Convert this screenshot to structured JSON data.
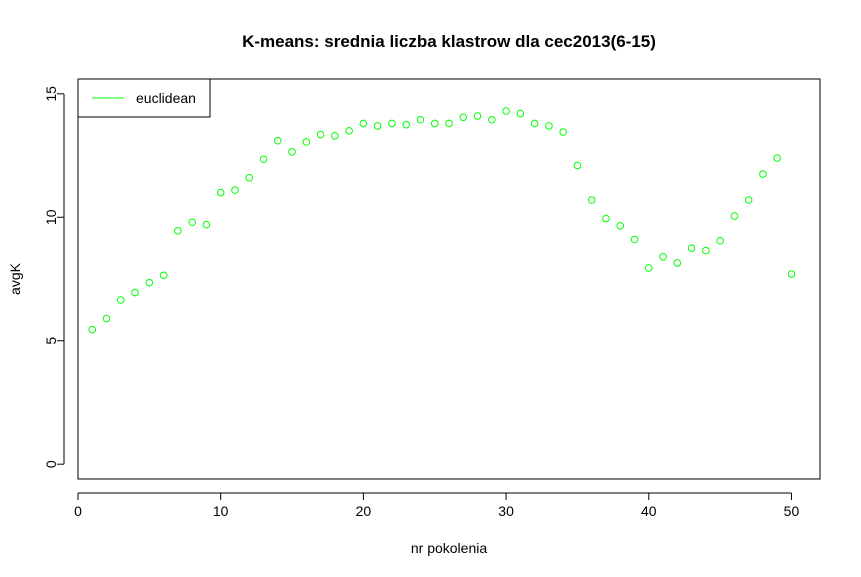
{
  "colors": {
    "series": "#00ff00",
    "axis": "#000000",
    "background": "#ffffff"
  },
  "chart_data": {
    "type": "scatter",
    "title": "K-means: srednia liczba klastrow dla cec2013(6-15)",
    "xlabel": "nr pokolenia",
    "ylabel": "avgK",
    "xlim": [
      0,
      52
    ],
    "ylim": [
      -0.6,
      15.6
    ],
    "xticks": [
      0,
      10,
      20,
      30,
      40,
      50
    ],
    "yticks": [
      0,
      5,
      10,
      15
    ],
    "grid": false,
    "legend": {
      "position": "top-left",
      "entries": [
        "euclidean"
      ]
    },
    "series": [
      {
        "name": "euclidean",
        "color": "#00ff00",
        "marker": "open-circle",
        "x": [
          1,
          2,
          3,
          4,
          5,
          6,
          7,
          8,
          9,
          10,
          11,
          12,
          13,
          14,
          15,
          16,
          17,
          18,
          19,
          20,
          21,
          22,
          23,
          24,
          25,
          26,
          27,
          28,
          29,
          30,
          31,
          32,
          33,
          34,
          35,
          36,
          37,
          38,
          39,
          40,
          41,
          42,
          43,
          44,
          45,
          46,
          47,
          48,
          49,
          50
        ],
        "y": [
          5.45,
          5.9,
          6.65,
          6.95,
          7.35,
          7.65,
          9.45,
          9.8,
          9.7,
          11.0,
          11.1,
          11.6,
          12.35,
          13.1,
          12.65,
          13.05,
          13.35,
          13.3,
          13.5,
          13.8,
          13.7,
          13.8,
          13.75,
          13.95,
          13.8,
          13.8,
          14.05,
          14.1,
          13.95,
          14.3,
          14.2,
          13.8,
          13.7,
          13.45,
          12.1,
          10.7,
          9.95,
          9.65,
          9.1,
          7.95,
          8.4,
          8.15,
          8.75,
          8.65,
          9.05,
          10.05,
          10.7,
          11.75,
          12.4,
          7.7
        ]
      }
    ]
  }
}
